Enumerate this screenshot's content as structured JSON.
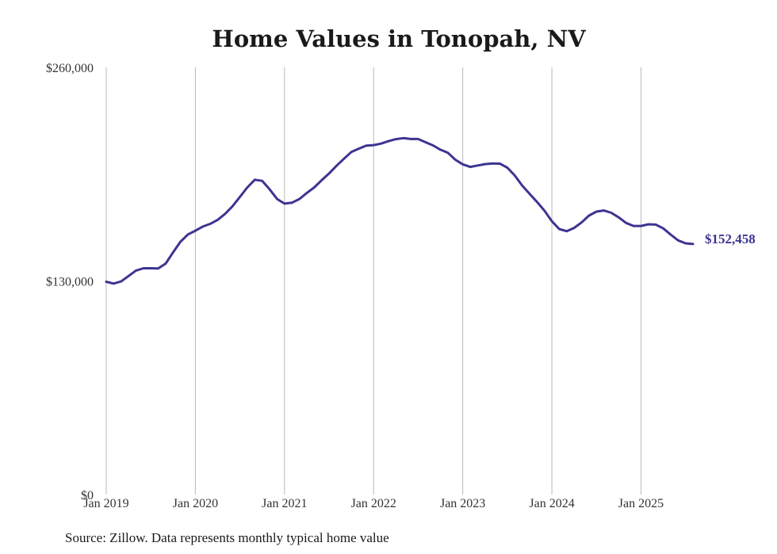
{
  "chart_data": {
    "type": "line",
    "title": "Home Values in Tonopah, NV",
    "xlabel": "",
    "ylabel": "",
    "ylim": [
      0,
      260000
    ],
    "y_ticks": [
      {
        "value": 0,
        "label": "$0"
      },
      {
        "value": 130000,
        "label": "$130,000"
      },
      {
        "value": 260000,
        "label": "$260,000"
      }
    ],
    "x_ticks": [
      {
        "value": 2019,
        "label": "Jan 2019"
      },
      {
        "value": 2020,
        "label": "Jan 2020"
      },
      {
        "value": 2021,
        "label": "Jan 2021"
      },
      {
        "value": 2022,
        "label": "Jan 2022"
      },
      {
        "value": 2023,
        "label": "Jan 2023"
      },
      {
        "value": 2024,
        "label": "Jan 2024"
      },
      {
        "value": 2025,
        "label": "Jan 2025"
      }
    ],
    "xlim": [
      2019,
      2025.583
    ],
    "grid": "vertical",
    "series": [
      {
        "name": "Typical home value",
        "color": "#3d3491",
        "end_label": "$152,458",
        "points": [
          [
            2019.0,
            129500
          ],
          [
            2019.083,
            128400
          ],
          [
            2019.167,
            129700
          ],
          [
            2019.25,
            133000
          ],
          [
            2019.333,
            136300
          ],
          [
            2019.417,
            137700
          ],
          [
            2019.5,
            137700
          ],
          [
            2019.583,
            137600
          ],
          [
            2019.667,
            140600
          ],
          [
            2019.75,
            147400
          ],
          [
            2019.833,
            153900
          ],
          [
            2019.917,
            158300
          ],
          [
            2020.0,
            160600
          ],
          [
            2020.083,
            163100
          ],
          [
            2020.167,
            164800
          ],
          [
            2020.25,
            167200
          ],
          [
            2020.333,
            170800
          ],
          [
            2020.417,
            175500
          ],
          [
            2020.5,
            181200
          ],
          [
            2020.583,
            186900
          ],
          [
            2020.667,
            191600
          ],
          [
            2020.75,
            190900
          ],
          [
            2020.833,
            185800
          ],
          [
            2020.917,
            179900
          ],
          [
            2021.0,
            177100
          ],
          [
            2021.083,
            177600
          ],
          [
            2021.167,
            179900
          ],
          [
            2021.25,
            183500
          ],
          [
            2021.333,
            186900
          ],
          [
            2021.417,
            191300
          ],
          [
            2021.5,
            195400
          ],
          [
            2021.583,
            200100
          ],
          [
            2021.667,
            204400
          ],
          [
            2021.75,
            208500
          ],
          [
            2021.833,
            210500
          ],
          [
            2021.917,
            212400
          ],
          [
            2022.0,
            212700
          ],
          [
            2022.083,
            213600
          ],
          [
            2022.167,
            215100
          ],
          [
            2022.25,
            216300
          ],
          [
            2022.333,
            216900
          ],
          [
            2022.417,
            216400
          ],
          [
            2022.5,
            216400
          ],
          [
            2022.583,
            214400
          ],
          [
            2022.667,
            212500
          ],
          [
            2022.75,
            209900
          ],
          [
            2022.833,
            208000
          ],
          [
            2022.917,
            203800
          ],
          [
            2023.0,
            201000
          ],
          [
            2023.083,
            199400
          ],
          [
            2023.167,
            200300
          ],
          [
            2023.25,
            201100
          ],
          [
            2023.333,
            201500
          ],
          [
            2023.417,
            201400
          ],
          [
            2023.5,
            199000
          ],
          [
            2023.583,
            194200
          ],
          [
            2023.667,
            188100
          ],
          [
            2023.75,
            183000
          ],
          [
            2023.833,
            178100
          ],
          [
            2023.917,
            172800
          ],
          [
            2024.0,
            166300
          ],
          [
            2024.083,
            161600
          ],
          [
            2024.167,
            160300
          ],
          [
            2024.25,
            162300
          ],
          [
            2024.333,
            165600
          ],
          [
            2024.417,
            169800
          ],
          [
            2024.5,
            172200
          ],
          [
            2024.583,
            172900
          ],
          [
            2024.667,
            171500
          ],
          [
            2024.75,
            168700
          ],
          [
            2024.833,
            165300
          ],
          [
            2024.917,
            163500
          ],
          [
            2025.0,
            163500
          ],
          [
            2025.083,
            164500
          ],
          [
            2025.167,
            164300
          ],
          [
            2025.25,
            162000
          ],
          [
            2025.333,
            158200
          ],
          [
            2025.417,
            154700
          ],
          [
            2025.5,
            152900
          ],
          [
            2025.583,
            152458
          ]
        ]
      }
    ]
  },
  "footer": {
    "source": "Source: Zillow. Data represents monthly typical home value"
  }
}
